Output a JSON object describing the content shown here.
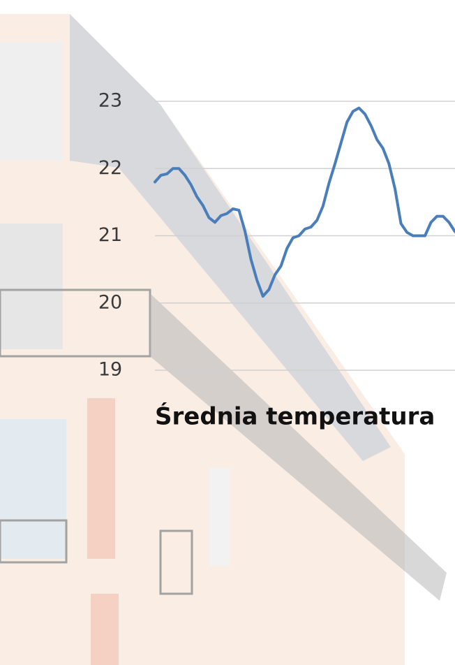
{
  "chart_data": {
    "type": "line",
    "title": "Średnia temperatura",
    "categories": [
      null,
      null,
      null,
      null,
      null,
      null,
      null,
      null,
      null,
      null,
      null,
      null,
      null,
      null,
      null,
      null,
      null,
      null,
      null,
      null,
      null,
      null,
      null,
      null,
      null,
      null,
      null,
      null,
      null,
      null,
      null,
      null,
      null,
      null,
      null,
      null,
      null,
      null,
      null,
      null,
      null,
      null,
      null,
      null,
      null,
      null,
      null,
      null,
      null,
      null,
      null
    ],
    "series": [
      {
        "name": null,
        "color": "#4a7ebb",
        "values": [
          21.8,
          21.9,
          21.92,
          22.0,
          22.0,
          21.9,
          21.76,
          21.58,
          21.45,
          21.27,
          21.2,
          21.3,
          21.33,
          21.4,
          21.38,
          21.07,
          20.65,
          20.34,
          20.1,
          20.2,
          20.42,
          20.55,
          20.81,
          20.97,
          21.0,
          21.1,
          21.13,
          21.23,
          21.44,
          21.78,
          22.07,
          22.38,
          22.69,
          22.85,
          22.9,
          22.81,
          22.64,
          22.43,
          22.3,
          22.07,
          21.7,
          21.18,
          21.05,
          21.0,
          21.0,
          21.0,
          21.2,
          21.29,
          21.29,
          21.2,
          21.06
        ]
      }
    ],
    "ylim": [
      19,
      23
    ],
    "yticks": [
      19,
      20,
      21,
      22,
      23
    ],
    "grid": true
  }
}
